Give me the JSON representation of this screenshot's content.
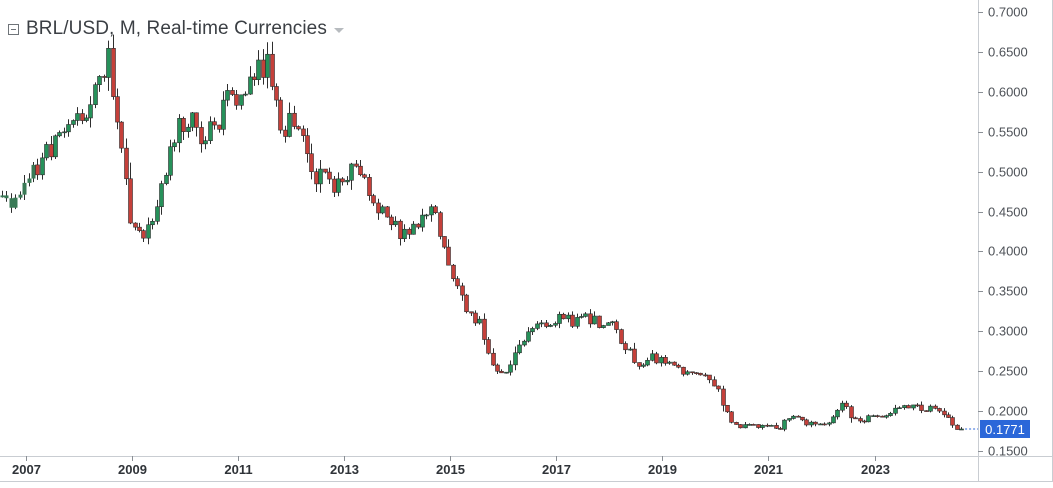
{
  "title": "BRL/USD, M, Real-time Currencies",
  "colors": {
    "up": "#26915a",
    "down": "#c5403a",
    "outline": "#2e2e2e",
    "grid_frame": "#c9cdd2",
    "axis_text": "#4d5157",
    "price_tag": "#2b67d9"
  },
  "chart_data": {
    "type": "candlestick",
    "title": "BRL/USD, M, Real-time Currencies",
    "xlabel": "",
    "ylabel": "",
    "x_range": [
      2006.55,
      2024.95
    ],
    "ylim": [
      0.1432,
      0.7105
    ],
    "x_ticks": [
      {
        "year": 2007,
        "label": "2007"
      },
      {
        "year": 2009,
        "label": "2009"
      },
      {
        "year": 2011,
        "label": "2011"
      },
      {
        "year": 2013,
        "label": "2013"
      },
      {
        "year": 2015,
        "label": "2015"
      },
      {
        "year": 2017,
        "label": "2017"
      },
      {
        "year": 2019,
        "label": "2019"
      },
      {
        "year": 2021,
        "label": "2021"
      },
      {
        "year": 2023,
        "label": "2023"
      }
    ],
    "y_ticks": [
      {
        "value": 0.7,
        "label": "0.7000"
      },
      {
        "value": 0.65,
        "label": "0.6500"
      },
      {
        "value": 0.6,
        "label": "0.6000"
      },
      {
        "value": 0.55,
        "label": "0.5500"
      },
      {
        "value": 0.5,
        "label": "0.5000"
      },
      {
        "value": 0.45,
        "label": "0.4500"
      },
      {
        "value": 0.4,
        "label": "0.4000"
      },
      {
        "value": 0.35,
        "label": "0.3500"
      },
      {
        "value": 0.3,
        "label": "0.3000"
      },
      {
        "value": 0.25,
        "label": "0.2500"
      },
      {
        "value": 0.2,
        "label": "0.2000"
      },
      {
        "value": 0.15,
        "label": "0.1500"
      }
    ],
    "last_price": {
      "value": 0.1771,
      "label": "0.1771"
    },
    "anchors": [
      [
        2006.55,
        0.46
      ],
      [
        2006.9,
        0.47
      ],
      [
        2007.15,
        0.5
      ],
      [
        2007.35,
        0.52
      ],
      [
        2007.6,
        0.545
      ],
      [
        2007.85,
        0.565
      ],
      [
        2008.1,
        0.575
      ],
      [
        2008.35,
        0.61
      ],
      [
        2008.55,
        0.64
      ],
      [
        2008.7,
        0.58
      ],
      [
        2008.8,
        0.52
      ],
      [
        2008.95,
        0.45
      ],
      [
        2009.1,
        0.42
      ],
      [
        2009.3,
        0.43
      ],
      [
        2009.55,
        0.48
      ],
      [
        2009.8,
        0.55
      ],
      [
        2010.1,
        0.57
      ],
      [
        2010.3,
        0.545
      ],
      [
        2010.55,
        0.555
      ],
      [
        2010.8,
        0.59
      ],
      [
        2011.05,
        0.6
      ],
      [
        2011.3,
        0.62
      ],
      [
        2011.55,
        0.64
      ],
      [
        2011.7,
        0.6
      ],
      [
        2011.8,
        0.54
      ],
      [
        2012.05,
        0.57
      ],
      [
        2012.2,
        0.54
      ],
      [
        2012.4,
        0.495
      ],
      [
        2012.7,
        0.49
      ],
      [
        2012.95,
        0.48
      ],
      [
        2013.15,
        0.5
      ],
      [
        2013.3,
        0.505
      ],
      [
        2013.5,
        0.47
      ],
      [
        2013.75,
        0.445
      ],
      [
        2014.0,
        0.425
      ],
      [
        2014.25,
        0.43
      ],
      [
        2014.45,
        0.445
      ],
      [
        2014.7,
        0.445
      ],
      [
        2014.9,
        0.405
      ],
      [
        2015.1,
        0.36
      ],
      [
        2015.3,
        0.33
      ],
      [
        2015.55,
        0.31
      ],
      [
        2015.8,
        0.255
      ],
      [
        2016.05,
        0.25
      ],
      [
        2016.3,
        0.28
      ],
      [
        2016.55,
        0.305
      ],
      [
        2016.8,
        0.31
      ],
      [
        2017.05,
        0.32
      ],
      [
        2017.3,
        0.31
      ],
      [
        2017.55,
        0.315
      ],
      [
        2017.8,
        0.31
      ],
      [
        2018.05,
        0.305
      ],
      [
        2018.3,
        0.28
      ],
      [
        2018.55,
        0.255
      ],
      [
        2018.8,
        0.265
      ],
      [
        2019.05,
        0.265
      ],
      [
        2019.3,
        0.255
      ],
      [
        2019.55,
        0.245
      ],
      [
        2019.8,
        0.24
      ],
      [
        2020.05,
        0.225
      ],
      [
        2020.2,
        0.2
      ],
      [
        2020.4,
        0.18
      ],
      [
        2020.7,
        0.18
      ],
      [
        2020.95,
        0.185
      ],
      [
        2021.2,
        0.18
      ],
      [
        2021.45,
        0.195
      ],
      [
        2021.7,
        0.185
      ],
      [
        2021.95,
        0.178
      ],
      [
        2022.15,
        0.19
      ],
      [
        2022.35,
        0.21
      ],
      [
        2022.55,
        0.195
      ],
      [
        2022.8,
        0.188
      ],
      [
        2023.05,
        0.192
      ],
      [
        2023.3,
        0.198
      ],
      [
        2023.55,
        0.208
      ],
      [
        2023.8,
        0.205
      ],
      [
        2024.05,
        0.203
      ],
      [
        2024.3,
        0.195
      ],
      [
        2024.55,
        0.18
      ],
      [
        2024.65,
        0.177
      ]
    ]
  }
}
